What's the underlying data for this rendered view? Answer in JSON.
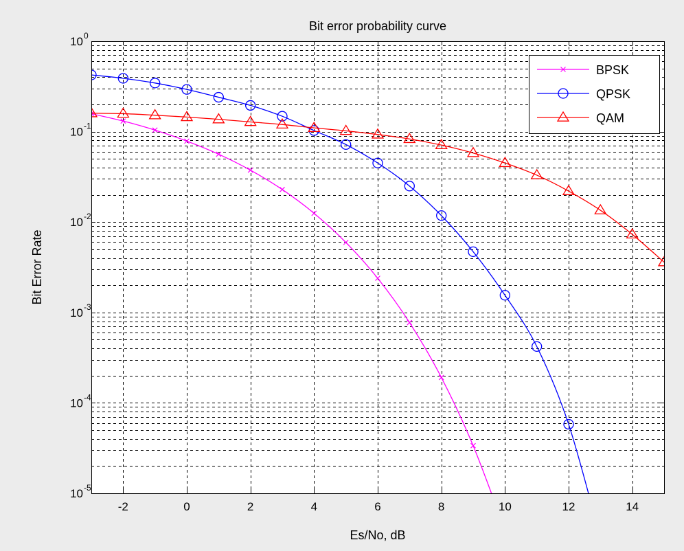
{
  "chart_data": {
    "type": "line",
    "title": "Bit error probability curve",
    "xlabel": "Es/No, dB",
    "ylabel": "Bit Error Rate",
    "xlim": [
      -3,
      15
    ],
    "ylim": [
      1e-05,
      1
    ],
    "yscale": "log",
    "grid": true,
    "legend": "top-right",
    "x_ticks": [
      {
        "value": -2,
        "label": "-2"
      },
      {
        "value": 0,
        "label": "0"
      },
      {
        "value": 2,
        "label": "2"
      },
      {
        "value": 4,
        "label": "4"
      },
      {
        "value": 6,
        "label": "6"
      },
      {
        "value": 8,
        "label": "8"
      },
      {
        "value": 10,
        "label": "10"
      },
      {
        "value": 12,
        "label": "12"
      },
      {
        "value": 14,
        "label": "14"
      }
    ],
    "y_ticks": [
      {
        "value": 1,
        "base": "10",
        "exp": "0"
      },
      {
        "value": 0.1,
        "base": "10",
        "exp": "-1"
      },
      {
        "value": 0.01,
        "base": "10",
        "exp": "-2"
      },
      {
        "value": 0.001,
        "base": "10",
        "exp": "-3"
      },
      {
        "value": 0.0001,
        "base": "10",
        "exp": "-4"
      },
      {
        "value": 1e-05,
        "base": "10",
        "exp": "-5"
      }
    ],
    "series": [
      {
        "name": "BPSK",
        "color": "#ff00ff",
        "marker": "x",
        "x": [
          -3,
          -2,
          -1,
          0,
          1,
          2,
          3,
          4,
          5,
          6,
          7,
          8,
          9,
          10
        ],
        "y": [
          0.158,
          0.131,
          0.104,
          0.0786,
          0.0563,
          0.0375,
          0.0229,
          0.0125,
          0.00595,
          0.00239,
          0.000773,
          0.000191,
          3.36e-05,
          3.9e-06
        ]
      },
      {
        "name": "QPSK",
        "color": "#0000ff",
        "marker": "o",
        "x": [
          -3,
          -2,
          -1,
          0,
          1,
          2,
          3,
          4,
          5,
          6,
          7,
          8,
          9,
          10,
          11,
          12,
          13
        ],
        "y": [
          0.424,
          0.389,
          0.345,
          0.293,
          0.24,
          0.195,
          0.148,
          0.103,
          0.072,
          0.045,
          0.025,
          0.0118,
          0.0047,
          0.00155,
          0.00042,
          5.8e-05,
          3.2e-06
        ]
      },
      {
        "name": "QAM",
        "color": "#ff0000",
        "marker": "triangle",
        "x": [
          -3,
          -2,
          -1,
          0,
          1,
          2,
          3,
          4,
          5,
          6,
          7,
          8,
          9,
          10,
          11,
          12,
          13,
          14,
          15
        ],
        "y": [
          0.16,
          0.158,
          0.152,
          0.145,
          0.137,
          0.128,
          0.12,
          0.11,
          0.102,
          0.093,
          0.083,
          0.071,
          0.058,
          0.045,
          0.033,
          0.022,
          0.0135,
          0.0073,
          0.0036
        ]
      }
    ]
  }
}
